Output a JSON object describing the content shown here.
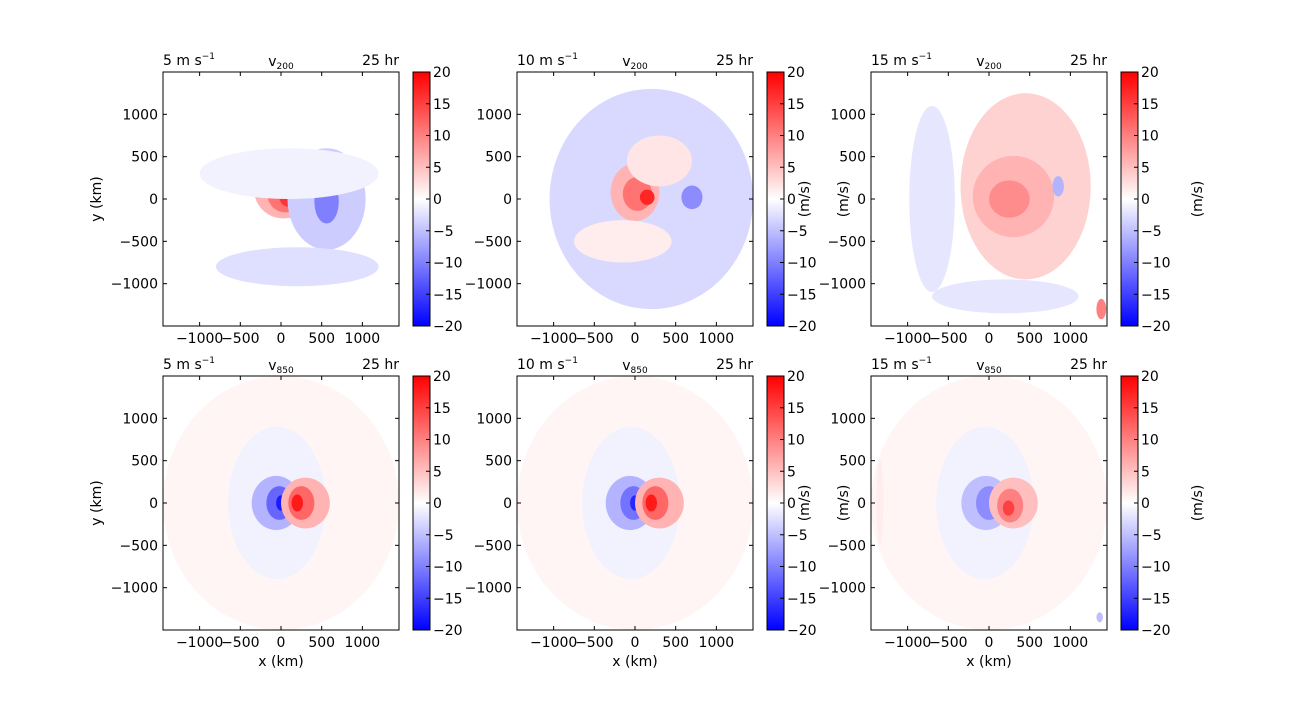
{
  "chart_data": [
    {
      "type": "heatmap",
      "variable": "v",
      "level": "200",
      "left_label": "5 m s",
      "left_label_unit_exp": "−1",
      "time_label": "25 hr",
      "xlabel": "",
      "ylabel": "y (km)",
      "cbar_label": "",
      "xlim": [
        -1450,
        1450
      ],
      "ylim": [
        -1500,
        1500
      ],
      "xticks": [
        "−1000",
        "−500",
        "0",
        "500",
        "1000"
      ],
      "yticks": [
        "1000",
        "500",
        "0",
        "−500",
        "−1000"
      ],
      "colorbar_ticks": [
        "20",
        "15",
        "10",
        "5",
        "0",
        "−5",
        "−10",
        "−15",
        "−20"
      ],
      "colorbar_range": [
        -20,
        20
      ],
      "features": [
        {
          "kind": "blob",
          "x": 30,
          "y": 110,
          "rx": 360,
          "ry": 340,
          "value": 6
        },
        {
          "kind": "blob",
          "x": 60,
          "y": 60,
          "rx": 230,
          "ry": 220,
          "value": 11
        },
        {
          "kind": "blob",
          "x": 90,
          "y": 20,
          "rx": 110,
          "ry": 110,
          "value": 16
        },
        {
          "kind": "blob",
          "x": 560,
          "y": 0,
          "rx": 480,
          "ry": 600,
          "value": -4
        },
        {
          "kind": "blob",
          "x": 560,
          "y": -30,
          "rx": 150,
          "ry": 260,
          "value": -10
        },
        {
          "kind": "blob",
          "x": 200,
          "y": -800,
          "rx": 1000,
          "ry": 230,
          "value": -2.5
        },
        {
          "kind": "blob",
          "x": 100,
          "y": 300,
          "rx": 1100,
          "ry": 300,
          "value": -1
        }
      ]
    },
    {
      "type": "heatmap",
      "variable": "v",
      "level": "200",
      "left_label": "10 m s",
      "left_label_unit_exp": "−1",
      "time_label": "25 hr",
      "xlabel": "",
      "ylabel": "",
      "cbar_label": "(m/s)",
      "xlim": [
        -1450,
        1450
      ],
      "ylim": [
        -1500,
        1500
      ],
      "xticks": [
        "−1000",
        "−500",
        "0",
        "500",
        "1000"
      ],
      "yticks": [
        "1000",
        "500",
        "0",
        "−500",
        "−1000"
      ],
      "colorbar_ticks": [
        "20",
        "15",
        "10",
        "5",
        "0",
        "−5",
        "−10",
        "−15",
        "−20"
      ],
      "colorbar_range": [
        -20,
        20
      ],
      "features": [
        {
          "kind": "blob",
          "x": 200,
          "y": 0,
          "rx": 1250,
          "ry": 1300,
          "value": -3
        },
        {
          "kind": "blob",
          "x": 0,
          "y": 80,
          "rx": 300,
          "ry": 340,
          "value": 6
        },
        {
          "kind": "blob",
          "x": 30,
          "y": 60,
          "rx": 180,
          "ry": 200,
          "value": 11
        },
        {
          "kind": "blob",
          "x": 150,
          "y": 20,
          "rx": 90,
          "ry": 90,
          "value": 17
        },
        {
          "kind": "blob",
          "x": 700,
          "y": 20,
          "rx": 130,
          "ry": 140,
          "value": -9
        },
        {
          "kind": "blob",
          "x": 300,
          "y": 450,
          "rx": 400,
          "ry": 300,
          "value": 2
        },
        {
          "kind": "blob",
          "x": -150,
          "y": -500,
          "rx": 600,
          "ry": 250,
          "value": 1.5
        }
      ]
    },
    {
      "type": "heatmap",
      "variable": "v",
      "level": "200",
      "left_label": "15 m s",
      "left_label_unit_exp": "−1",
      "time_label": "25 hr",
      "xlabel": "",
      "ylabel": "(m/s)",
      "cbar_label": "(m/s)",
      "xlim": [
        -1450,
        1450
      ],
      "ylim": [
        -1500,
        1500
      ],
      "xticks": [
        "−1000",
        "−500",
        "0",
        "500",
        "1000"
      ],
      "yticks": [
        "1000",
        "500",
        "0",
        "−500",
        "−1000"
      ],
      "colorbar_ticks": [
        "20",
        "15",
        "10",
        "5",
        "0",
        "−5",
        "−10",
        "−15",
        "−20"
      ],
      "colorbar_range": [
        -20,
        20
      ],
      "features": [
        {
          "kind": "blob",
          "x": 450,
          "y": 150,
          "rx": 800,
          "ry": 1100,
          "value": 3.5
        },
        {
          "kind": "blob",
          "x": 300,
          "y": 30,
          "rx": 500,
          "ry": 480,
          "value": 6
        },
        {
          "kind": "blob",
          "x": 250,
          "y": 0,
          "rx": 250,
          "ry": 220,
          "value": 9
        },
        {
          "kind": "blob",
          "x": -700,
          "y": 0,
          "rx": 280,
          "ry": 1100,
          "value": -2
        },
        {
          "kind": "blob",
          "x": 200,
          "y": -1150,
          "rx": 900,
          "ry": 200,
          "value": -2
        },
        {
          "kind": "blob",
          "x": 850,
          "y": 150,
          "rx": 70,
          "ry": 120,
          "value": -6
        },
        {
          "kind": "blob",
          "x": 1380,
          "y": -1300,
          "rx": 60,
          "ry": 120,
          "value": 10
        }
      ]
    },
    {
      "type": "heatmap",
      "variable": "v",
      "level": "850",
      "left_label": "5 m s",
      "left_label_unit_exp": "−1",
      "time_label": "25 hr",
      "xlabel": "x (km)",
      "ylabel": "y (km)",
      "cbar_label": "",
      "xlim": [
        -1450,
        1450
      ],
      "ylim": [
        -1500,
        1500
      ],
      "xticks": [
        "−1000",
        "−500",
        "0",
        "500",
        "1000"
      ],
      "yticks": [
        "1000",
        "500",
        "0",
        "−500",
        "−1000"
      ],
      "colorbar_ticks": [
        "20",
        "15",
        "10",
        "5",
        "0",
        "−5",
        "−10",
        "−15",
        "−20"
      ],
      "colorbar_range": [
        -20,
        20
      ],
      "features": [
        {
          "kind": "blob",
          "x": 0,
          "y": 0,
          "rx": 1450,
          "ry": 1500,
          "value": 0.8
        },
        {
          "kind": "blob",
          "x": -50,
          "y": 0,
          "rx": 600,
          "ry": 900,
          "value": -1
        },
        {
          "kind": "blob",
          "x": -60,
          "y": 0,
          "rx": 300,
          "ry": 320,
          "value": -6
        },
        {
          "kind": "blob",
          "x": -20,
          "y": 0,
          "rx": 160,
          "ry": 200,
          "value": -12
        },
        {
          "kind": "blob",
          "x": 0,
          "y": 0,
          "rx": 60,
          "ry": 90,
          "value": -18
        },
        {
          "kind": "blob",
          "x": 300,
          "y": 0,
          "rx": 300,
          "ry": 300,
          "value": 6
        },
        {
          "kind": "blob",
          "x": 250,
          "y": 0,
          "rx": 160,
          "ry": 200,
          "value": 12
        },
        {
          "kind": "blob",
          "x": 200,
          "y": 0,
          "rx": 70,
          "ry": 100,
          "value": 18
        }
      ]
    },
    {
      "type": "heatmap",
      "variable": "v",
      "level": "850",
      "left_label": "10 m s",
      "left_label_unit_exp": "−1",
      "time_label": "25 hr",
      "xlabel": "x (km)",
      "ylabel": "",
      "cbar_label": "(m/s)",
      "xlim": [
        -1450,
        1450
      ],
      "ylim": [
        -1500,
        1500
      ],
      "xticks": [
        "−1000",
        "−500",
        "0",
        "500",
        "1000"
      ],
      "yticks": [
        "1000",
        "500",
        "0",
        "−500",
        "−1000"
      ],
      "colorbar_ticks": [
        "20",
        "15",
        "10",
        "5",
        "0",
        "−5",
        "−10",
        "−15",
        "−20"
      ],
      "colorbar_range": [
        -20,
        20
      ],
      "features": [
        {
          "kind": "blob",
          "x": 0,
          "y": 0,
          "rx": 1450,
          "ry": 1500,
          "value": 0.8
        },
        {
          "kind": "blob",
          "x": -50,
          "y": 0,
          "rx": 600,
          "ry": 900,
          "value": -1
        },
        {
          "kind": "blob",
          "x": -60,
          "y": 0,
          "rx": 300,
          "ry": 320,
          "value": -6
        },
        {
          "kind": "blob",
          "x": -20,
          "y": 0,
          "rx": 160,
          "ry": 200,
          "value": -11
        },
        {
          "kind": "blob",
          "x": 0,
          "y": 0,
          "rx": 60,
          "ry": 90,
          "value": -17
        },
        {
          "kind": "blob",
          "x": 300,
          "y": 0,
          "rx": 300,
          "ry": 300,
          "value": 6
        },
        {
          "kind": "blob",
          "x": 250,
          "y": 0,
          "rx": 160,
          "ry": 200,
          "value": 12
        },
        {
          "kind": "blob",
          "x": 200,
          "y": 0,
          "rx": 70,
          "ry": 100,
          "value": 18
        }
      ]
    },
    {
      "type": "heatmap",
      "variable": "v",
      "level": "850",
      "left_label": "15 m s",
      "left_label_unit_exp": "−1",
      "time_label": "25 hr",
      "xlabel": "x (km)",
      "ylabel": "(m/s)",
      "cbar_label": "(m/s)",
      "xlim": [
        -1450,
        1450
      ],
      "ylim": [
        -1500,
        1500
      ],
      "xticks": [
        "−1000",
        "−500",
        "0",
        "500",
        "1000"
      ],
      "yticks": [
        "1000",
        "500",
        "0",
        "−500",
        "−1000"
      ],
      "colorbar_ticks": [
        "20",
        "15",
        "10",
        "5",
        "0",
        "−5",
        "−10",
        "−15",
        "−20"
      ],
      "colorbar_range": [
        -20,
        20
      ],
      "features": [
        {
          "kind": "blob",
          "x": 0,
          "y": 0,
          "rx": 1450,
          "ry": 1500,
          "value": 0.8
        },
        {
          "kind": "blob",
          "x": -50,
          "y": 0,
          "rx": 600,
          "ry": 900,
          "value": -1
        },
        {
          "kind": "blob",
          "x": -40,
          "y": 0,
          "rx": 300,
          "ry": 320,
          "value": -5
        },
        {
          "kind": "blob",
          "x": 0,
          "y": 0,
          "rx": 160,
          "ry": 200,
          "value": -9
        },
        {
          "kind": "blob",
          "x": 300,
          "y": 0,
          "rx": 300,
          "ry": 300,
          "value": 5
        },
        {
          "kind": "blob",
          "x": 260,
          "y": -30,
          "rx": 160,
          "ry": 200,
          "value": 10
        },
        {
          "kind": "blob",
          "x": 240,
          "y": -60,
          "rx": 70,
          "ry": 90,
          "value": 15
        },
        {
          "kind": "blob",
          "x": -1340,
          "y": 0,
          "rx": 40,
          "ry": 500,
          "value": 1.5
        },
        {
          "kind": "blob",
          "x": 1360,
          "y": -1350,
          "rx": 40,
          "ry": 60,
          "value": -5
        }
      ]
    }
  ]
}
